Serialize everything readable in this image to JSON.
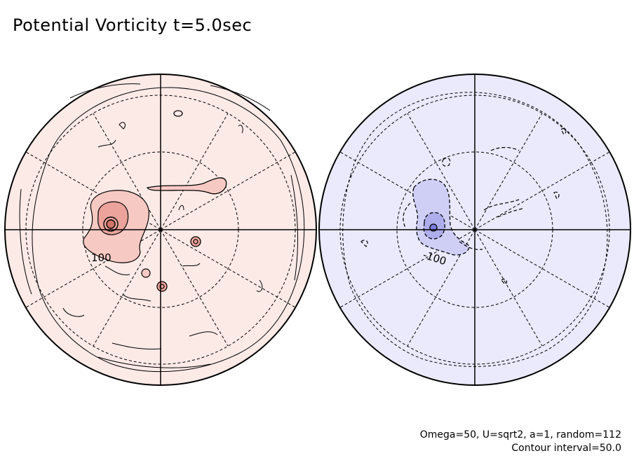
{
  "title": "Potential Vorticity t=5.0sec",
  "footer": {
    "params": "Omega=50, U=sqrt2, a=1, random=112",
    "contour_interval": "Contour interval=50.0"
  },
  "hemispheres": [
    {
      "id": "north",
      "fill": "#fceae7",
      "contour_label": "100"
    },
    {
      "id": "south",
      "fill": "#eaeafc",
      "contour_label": "-100"
    }
  ],
  "colors": {
    "axis": "#000000",
    "pos_shade_1": "#f6c9c3",
    "pos_shade_2": "#eba39b",
    "neg_shade_1": "#cfcff6",
    "neg_shade_2": "#aeaeed"
  }
}
